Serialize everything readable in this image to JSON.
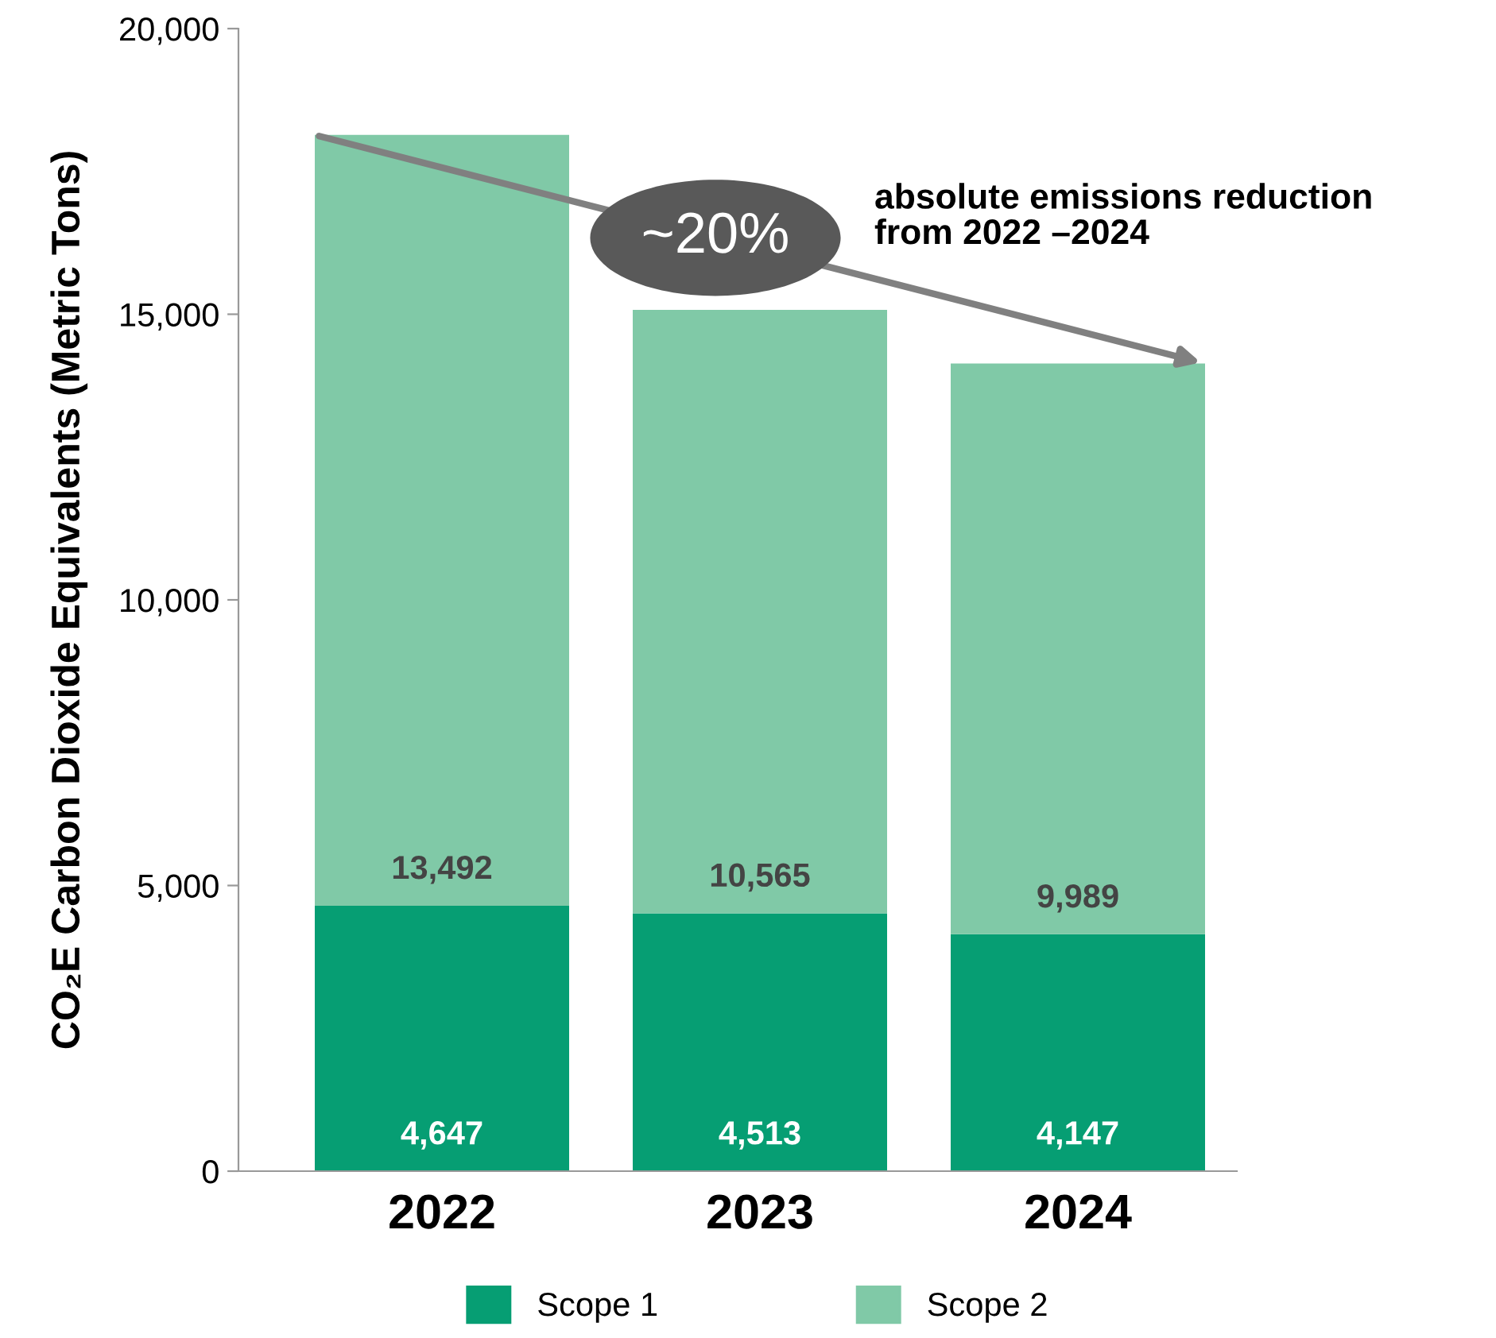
{
  "chart_data": {
    "type": "bar",
    "stacked": true,
    "ylabel": "CO₂E Carbon Dioxide Equivalents (Metric Tons)",
    "categories": [
      "2022",
      "2023",
      "2024"
    ],
    "series": [
      {
        "name": "Scope 1",
        "color": "#069e73",
        "values": [
          4647,
          4513,
          4147
        ],
        "value_labels": [
          "4,647",
          "4,513",
          "4,147"
        ]
      },
      {
        "name": "Scope 2",
        "color": "#80c9a7",
        "values": [
          13492,
          10565,
          9989
        ],
        "value_labels": [
          "13,492",
          "10,565",
          "9,989"
        ]
      }
    ],
    "ylim": [
      0,
      20000
    ],
    "yticks": [
      {
        "value": 0,
        "label": "0"
      },
      {
        "value": 5000,
        "label": "5,000"
      },
      {
        "value": 10000,
        "label": "10,000"
      },
      {
        "value": 15000,
        "label": "15,000"
      },
      {
        "value": 20000,
        "label": "20,000"
      }
    ],
    "grid": false,
    "legend": "bottom",
    "annotations": [
      "~20%",
      "absolute emissions reduction\nfrom 2022 –2024"
    ]
  }
}
